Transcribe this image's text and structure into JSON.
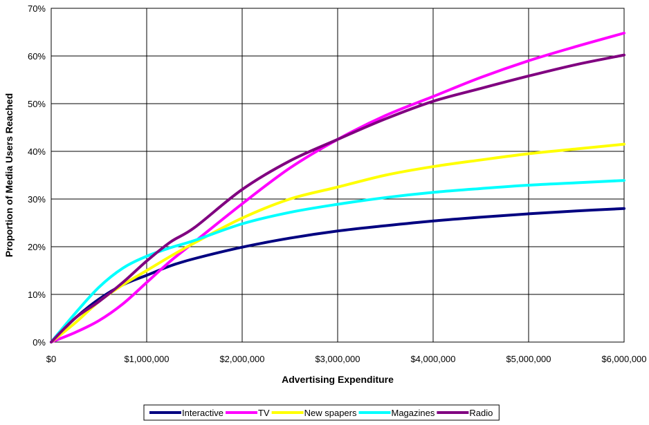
{
  "chart_data": {
    "type": "line",
    "xlabel": "Advertising Expenditure",
    "ylabel": "Proportion of Media Users Reached",
    "xlim": [
      0,
      6000000
    ],
    "ylim": [
      0,
      0.7
    ],
    "x_tick_labels": [
      "$0",
      "$1,000,000",
      "$2,000,000",
      "$3,000,000",
      "$4,000,000",
      "$5,000,000",
      "$6,000,000"
    ],
    "y_tick_labels": [
      "0%",
      "10%",
      "20%",
      "30%",
      "40%",
      "50%",
      "60%",
      "70%"
    ],
    "grid": true,
    "legend_position": "bottom",
    "x": [
      0,
      250000,
      500000,
      750000,
      1000000,
      1250000,
      1500000,
      2000000,
      2500000,
      3000000,
      3500000,
      4000000,
      4500000,
      5000000,
      5500000,
      6000000
    ],
    "series": [
      {
        "name": "Interactive",
        "color": "#000080",
        "values": [
          0,
          0.05,
          0.09,
          0.12,
          0.14,
          0.16,
          0.175,
          0.199,
          0.218,
          0.233,
          0.244,
          0.254,
          0.262,
          0.269,
          0.275,
          0.28
        ]
      },
      {
        "name": "TV",
        "color": "#ff00ff",
        "values": [
          0,
          0.02,
          0.045,
          0.08,
          0.125,
          0.17,
          0.21,
          0.29,
          0.365,
          0.425,
          0.475,
          0.515,
          0.555,
          0.59,
          0.62,
          0.648
        ]
      },
      {
        "name": "New spapers",
        "color": "#ffff00",
        "values": [
          0,
          0.04,
          0.085,
          0.12,
          0.15,
          0.18,
          0.208,
          0.26,
          0.3,
          0.325,
          0.35,
          0.368,
          0.382,
          0.395,
          0.405,
          0.415
        ]
      },
      {
        "name": "Magazines",
        "color": "#00ffff",
        "values": [
          0,
          0.06,
          0.115,
          0.155,
          0.18,
          0.198,
          0.213,
          0.248,
          0.272,
          0.289,
          0.303,
          0.314,
          0.322,
          0.329,
          0.334,
          0.339
        ]
      },
      {
        "name": "Radio",
        "color": "#800080",
        "values": [
          0,
          0.05,
          0.085,
          0.125,
          0.17,
          0.21,
          0.24,
          0.32,
          0.38,
          0.425,
          0.468,
          0.505,
          0.532,
          0.558,
          0.582,
          0.602
        ]
      }
    ]
  }
}
